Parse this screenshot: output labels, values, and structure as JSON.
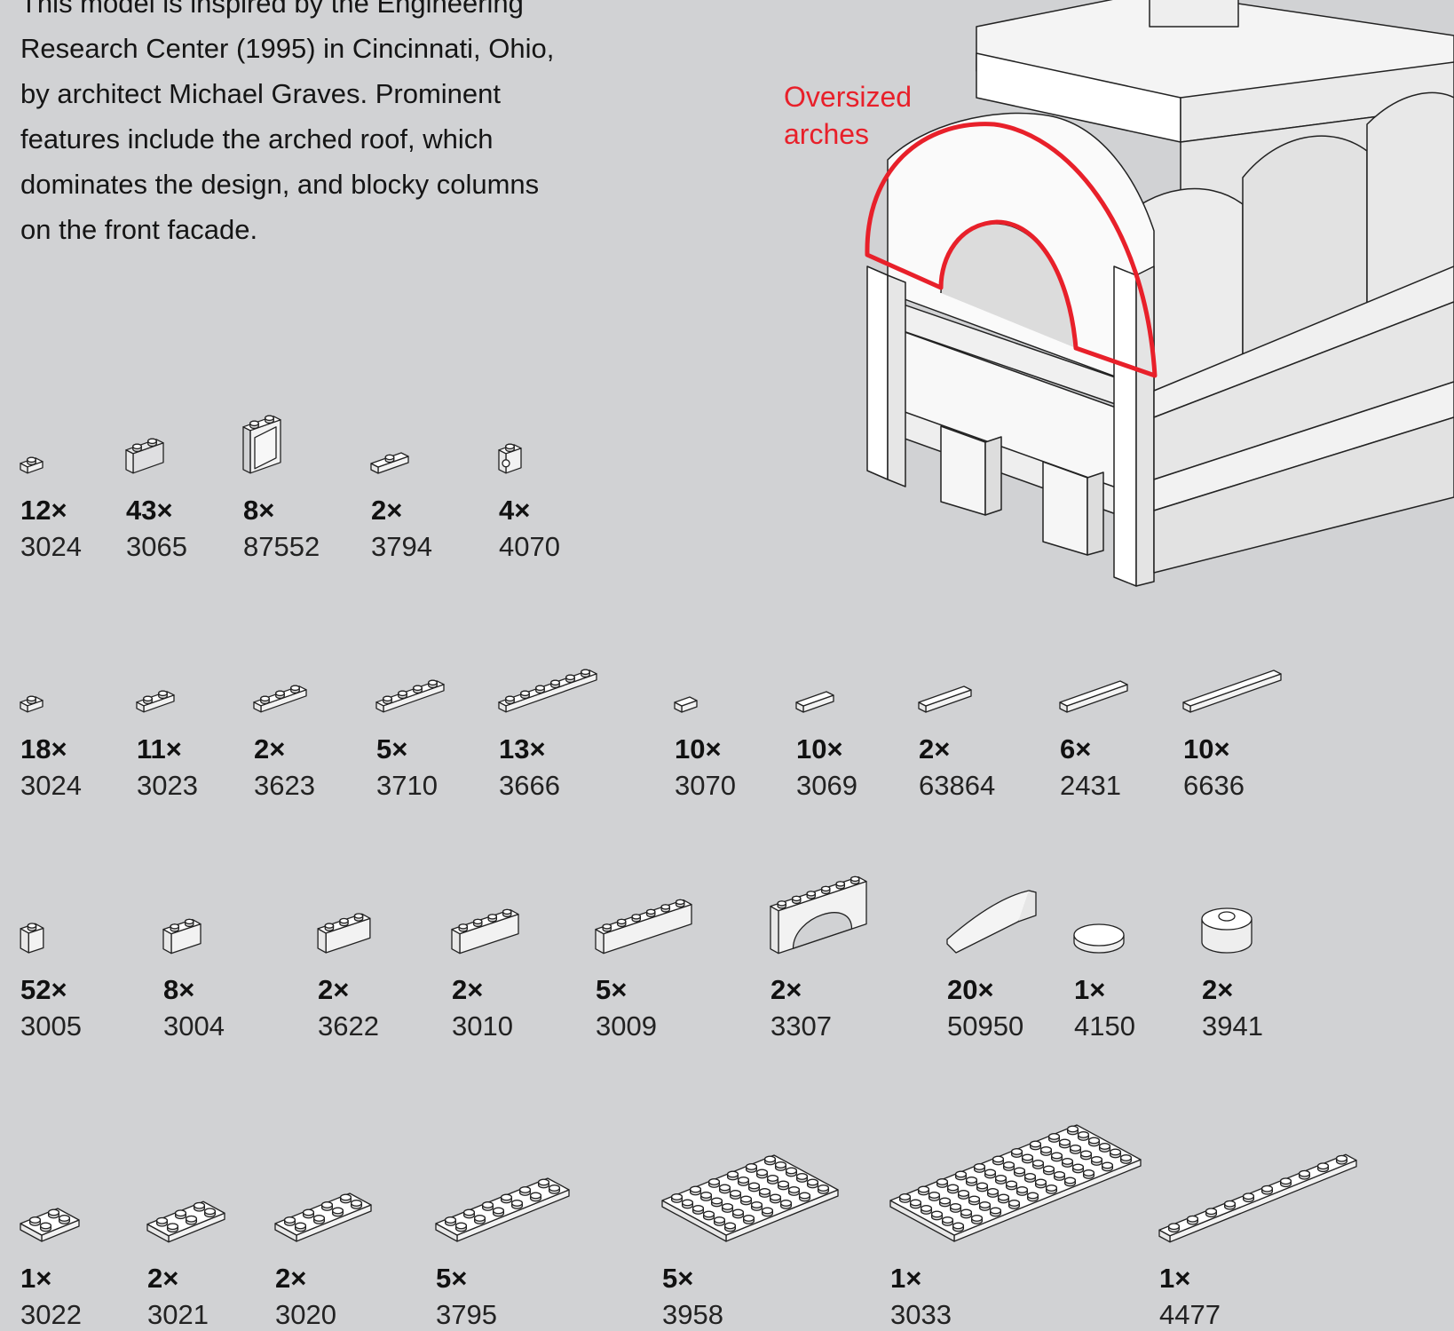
{
  "description": {
    "lines": [
      "This model is inspired by the Engineering",
      "Research Center (1995) in Cincinnati, Ohio,",
      "by architect Michael Graves. Prominent",
      "features include the arched roof, which",
      "dominates the design, and blocky columns",
      "on the front facade."
    ]
  },
  "callout": {
    "lines": [
      "Oversized",
      "arches"
    ],
    "color": "#e8202a"
  },
  "colors": {
    "background": "#d1d2d4",
    "highlight": "#e8202a"
  },
  "parts_rows": [
    [
      {
        "qty": "12×",
        "id": "3024",
        "icon": "plate-1x1"
      },
      {
        "qty": "43×",
        "id": "3065",
        "icon": "brick-1x2-transparent"
      },
      {
        "qty": "8×",
        "id": "87552",
        "icon": "window-1x2x2"
      },
      {
        "qty": "2×",
        "id": "3794",
        "icon": "jumper-1x2"
      },
      {
        "qty": "4×",
        "id": "4070",
        "icon": "headlight-1x1"
      }
    ],
    [
      {
        "qty": "18×",
        "id": "3024",
        "icon": "plate-1x1"
      },
      {
        "qty": "11×",
        "id": "3023",
        "icon": "plate-1x2"
      },
      {
        "qty": "2×",
        "id": "3623",
        "icon": "plate-1x3"
      },
      {
        "qty": "5×",
        "id": "3710",
        "icon": "plate-1x4"
      },
      {
        "qty": "13×",
        "id": "3666",
        "icon": "plate-1x6"
      },
      {
        "qty": "10×",
        "id": "3070",
        "icon": "tile-1x1"
      },
      {
        "qty": "10×",
        "id": "3069",
        "icon": "tile-1x2"
      },
      {
        "qty": "2×",
        "id": "63864",
        "icon": "tile-1x3"
      },
      {
        "qty": "6×",
        "id": "2431",
        "icon": "tile-1x4"
      },
      {
        "qty": "10×",
        "id": "6636",
        "icon": "tile-1x6"
      }
    ],
    [
      {
        "qty": "52×",
        "id": "3005",
        "icon": "brick-1x1"
      },
      {
        "qty": "8×",
        "id": "3004",
        "icon": "brick-1x2"
      },
      {
        "qty": "2×",
        "id": "3622",
        "icon": "brick-1x3"
      },
      {
        "qty": "2×",
        "id": "3010",
        "icon": "brick-1x4"
      },
      {
        "qty": "5×",
        "id": "3009",
        "icon": "brick-1x6"
      },
      {
        "qty": "2×",
        "id": "3307",
        "icon": "arch-1x6x2"
      },
      {
        "qty": "20×",
        "id": "50950",
        "icon": "curved-slope-1x3"
      },
      {
        "qty": "1×",
        "id": "4150",
        "icon": "round-tile-2x2"
      },
      {
        "qty": "2×",
        "id": "3941",
        "icon": "round-brick-2x2"
      }
    ],
    [
      {
        "qty": "1×",
        "id": "3022",
        "icon": "plate-2x2"
      },
      {
        "qty": "2×",
        "id": "3021",
        "icon": "plate-2x3"
      },
      {
        "qty": "2×",
        "id": "3020",
        "icon": "plate-2x4"
      },
      {
        "qty": "5×",
        "id": "3795",
        "icon": "plate-2x6"
      },
      {
        "qty": "5×",
        "id": "3958",
        "icon": "plate-6x6"
      },
      {
        "qty": "1×",
        "id": "3033",
        "icon": "plate-6x10"
      },
      {
        "qty": "1×",
        "id": "4477",
        "icon": "plate-1x10"
      }
    ]
  ]
}
